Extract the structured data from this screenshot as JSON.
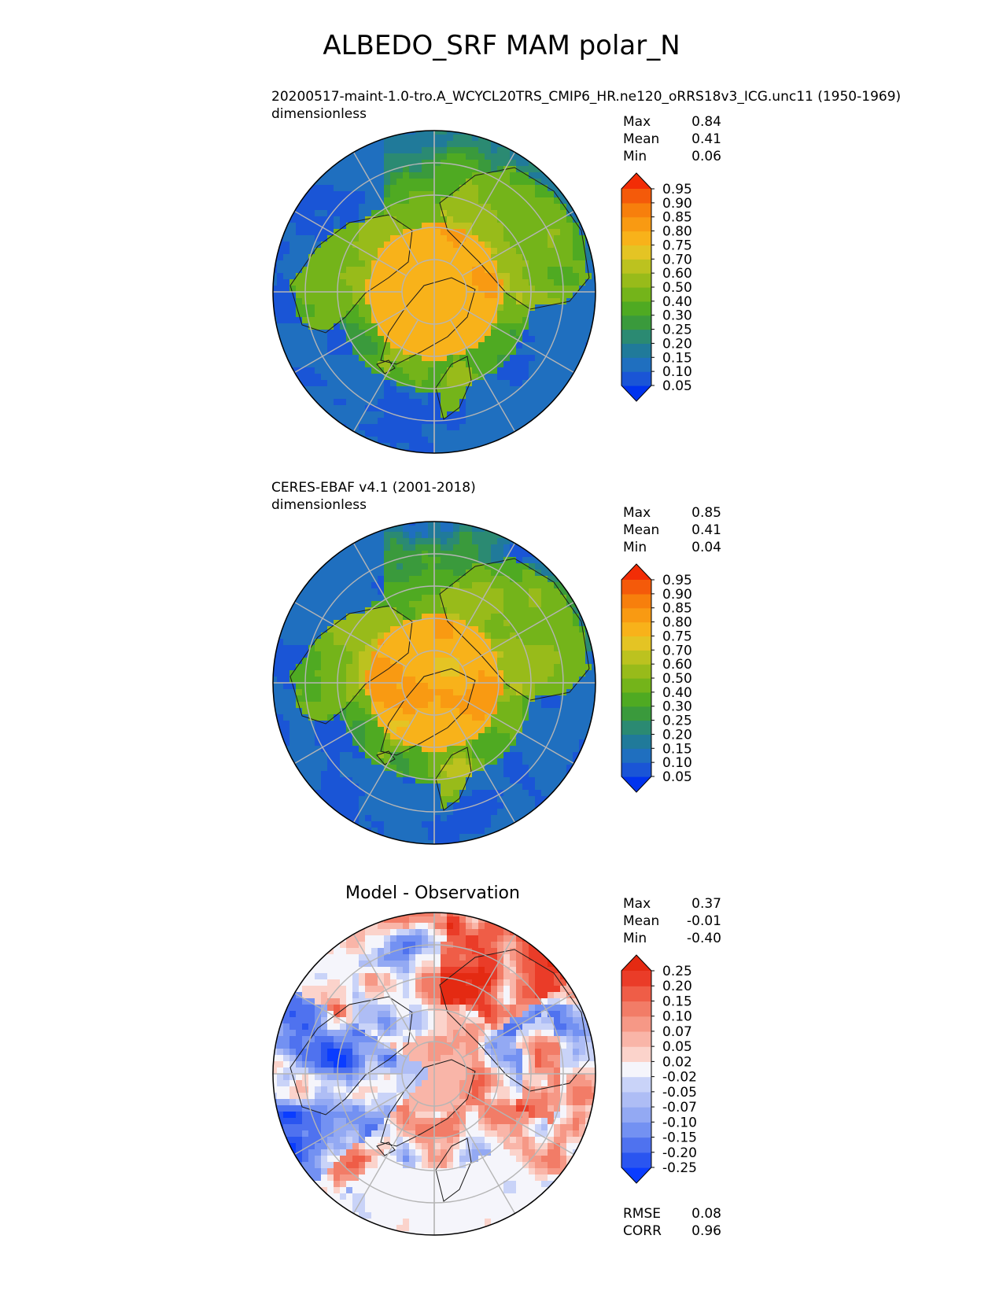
{
  "title": "ALBEDO_SRF MAM polar_N",
  "panels": [
    {
      "title_line1": "20200517-maint-1.0-tro.A_WCYCL20TRS_CMIP6_HR.ne120_oRRS18v3_ICG.unc11 (1950-1969)",
      "title_line2": "dimensionless",
      "stats": [
        {
          "label": "Max",
          "value": "0.84"
        },
        {
          "label": "Mean",
          "value": "0.41"
        },
        {
          "label": "Min",
          "value": "0.06"
        }
      ]
    },
    {
      "title_line1": "CERES-EBAF v4.1 (2001-2018)",
      "title_line2": "dimensionless",
      "stats": [
        {
          "label": "Max",
          "value": "0.85"
        },
        {
          "label": "Mean",
          "value": "0.41"
        },
        {
          "label": "Min",
          "value": "0.04"
        }
      ]
    },
    {
      "title": "Model - Observation",
      "stats": [
        {
          "label": "Max",
          "value": "0.37"
        },
        {
          "label": "Mean",
          "value": "-0.01"
        },
        {
          "label": "Min",
          "value": "-0.40"
        }
      ],
      "extra_stats": [
        {
          "label": "RMSE",
          "value": "0.08"
        },
        {
          "label": "CORR",
          "value": "0.96"
        }
      ]
    }
  ],
  "chart_data": [
    {
      "type": "heatmap",
      "projection": "north polar stereographic",
      "variable": "ALBEDO_SRF",
      "colorbar": {
        "extend": "both",
        "levels": [
          "0.05",
          "0.10",
          "0.15",
          "0.20",
          "0.25",
          "0.30",
          "0.40",
          "0.50",
          "0.60",
          "0.70",
          "0.75",
          "0.80",
          "0.85",
          "0.90",
          "0.95"
        ],
        "colors": [
          "#0033ee",
          "#1a55d6",
          "#1f6fbf",
          "#207a9a",
          "#2b8a72",
          "#3a9a3c",
          "#4faa22",
          "#74b41a",
          "#98bb1a",
          "#bcc21f",
          "#e4c424",
          "#f8b21a",
          "#f99a12",
          "#f77f0c",
          "#f45a0a",
          "#f22d06"
        ]
      },
      "stats": {
        "Max": 0.84,
        "Mean": 0.41,
        "Min": 0.06
      }
    },
    {
      "type": "heatmap",
      "projection": "north polar stereographic",
      "variable": "ALBEDO_SRF",
      "colorbar": {
        "extend": "both",
        "levels": [
          "0.05",
          "0.10",
          "0.15",
          "0.20",
          "0.25",
          "0.30",
          "0.40",
          "0.50",
          "0.60",
          "0.70",
          "0.75",
          "0.80",
          "0.85",
          "0.90",
          "0.95"
        ],
        "colors": [
          "#0033ee",
          "#1a55d6",
          "#1f6fbf",
          "#207a9a",
          "#2b8a72",
          "#3a9a3c",
          "#4faa22",
          "#74b41a",
          "#98bb1a",
          "#bcc21f",
          "#e4c424",
          "#f8b21a",
          "#f99a12",
          "#f77f0c",
          "#f45a0a",
          "#f22d06"
        ]
      },
      "stats": {
        "Max": 0.85,
        "Mean": 0.41,
        "Min": 0.04
      }
    },
    {
      "type": "heatmap",
      "projection": "north polar stereographic",
      "variable": "ALBEDO_SRF difference",
      "colorbar": {
        "extend": "both",
        "levels": [
          "-0.25",
          "-0.20",
          "-0.15",
          "-0.10",
          "-0.07",
          "-0.05",
          "-0.02",
          "0.02",
          "0.05",
          "0.07",
          "0.10",
          "0.15",
          "0.20",
          "0.25"
        ],
        "colors": [
          "#0a3cff",
          "#2a55f0",
          "#4f72ef",
          "#7391f2",
          "#93a9f3",
          "#aebdf5",
          "#c9d3f8",
          "#f5f5fb",
          "#fbd3cb",
          "#f9b5a8",
          "#f69886",
          "#f27c67",
          "#ef5d47",
          "#ea3c28",
          "#e42a12"
        ]
      },
      "stats": {
        "Max": 0.37,
        "Mean": -0.01,
        "Min": -0.4,
        "RMSE": 0.08,
        "CORR": 0.96
      }
    }
  ]
}
